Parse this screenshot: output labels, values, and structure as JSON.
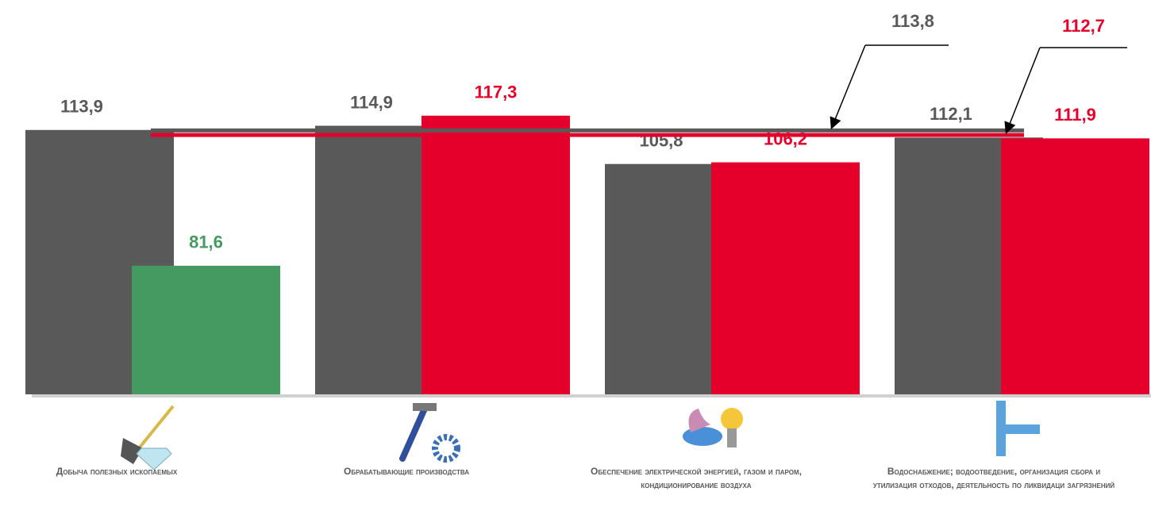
{
  "chart_data": {
    "type": "bar",
    "categories": [
      "Добыча полезных ископаемых",
      "Обрабатывающие производства",
      "Обеспечение электрической энергией, газом и паром, кондиционирование воздуха",
      "Водоснабжение; водоотведение, организация сбора и утилизация отходов, деятельность по ликвидаци загрязнений"
    ],
    "series": [
      {
        "color": "#595959",
        "values": [
          113.9,
          114.9,
          105.8,
          112.1
        ],
        "value_labels": [
          "113,9",
          "114,9",
          "105,8",
          "112,1"
        ]
      },
      {
        "colors": [
          "#459a62",
          "#e4002b",
          "#e4002b",
          "#e4002b"
        ],
        "values": [
          81.6,
          117.3,
          106.2,
          111.9
        ],
        "value_labels": [
          "81,6",
          "117,3",
          "106,2",
          "111,9"
        ]
      }
    ],
    "reference_lines": [
      {
        "value": 113.8,
        "label": "113,8",
        "color": "#595959"
      },
      {
        "value": 112.7,
        "label": "112,7",
        "color": "#e4002b"
      }
    ],
    "ylim": [
      51,
      125
    ]
  }
}
